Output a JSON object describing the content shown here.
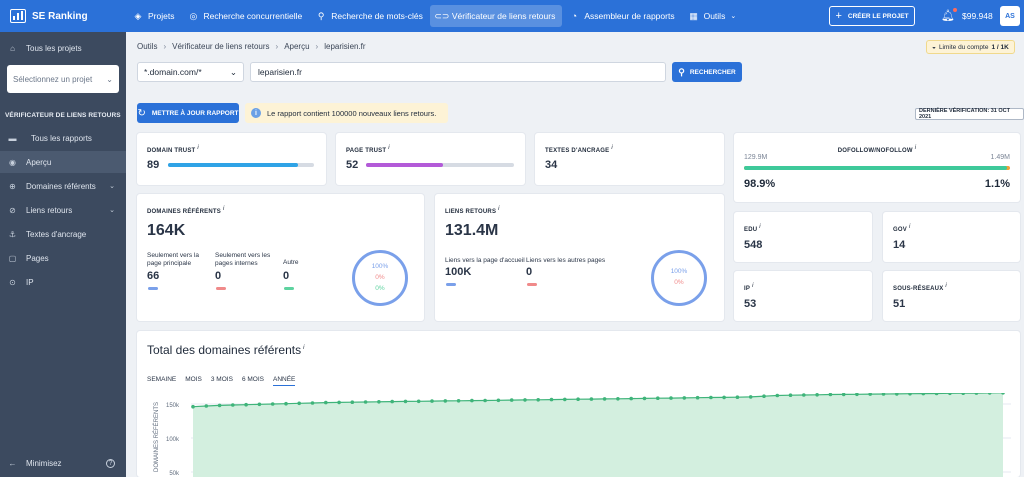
{
  "topbar": {
    "brand": "SE Ranking",
    "nav": [
      "Projets",
      "Recherche concurrentielle",
      "Recherche de mots-clés",
      "Vérificateur de liens retours",
      "Assembleur de rapports",
      "Outils"
    ],
    "create_project": "CRÉER LE PROJET",
    "balance": "$99.948",
    "avatar": "AS"
  },
  "sidebar": {
    "all_projects": "Tous les projets",
    "project_select_placeholder": "Sélectionnez un projet",
    "section_title": "VÉRIFICATEUR DE LIENS RETOURS",
    "items": [
      "Tous les rapports",
      "Aperçu",
      "Domaines référents",
      "Liens retours",
      "Textes d'ancrage",
      "Pages",
      "IP"
    ],
    "minimize": "Minimisez"
  },
  "breadcrumb": [
    "Outils",
    "Vérificateur de liens retours",
    "Aperçu",
    "leparisien.fr"
  ],
  "account_limit": "Limite du compte",
  "account_limit_value": "1 / 1K",
  "search": {
    "scope": "*.domain.com/*",
    "url": "leparisien.fr",
    "button": "RECHERCHER"
  },
  "update_button": "METTRE À JOUR RAPPORT",
  "notice": "Le rapport contient 100000 nouveaux liens retours.",
  "last_check": "DERNIÈRE VÉRIFICATION: 31 OCT 2021",
  "metrics": {
    "domain_trust": {
      "label": "DOMAIN TRUST",
      "value": "89",
      "fill": 0.89
    },
    "page_trust": {
      "label": "PAGE TRUST",
      "value": "52",
      "fill": 0.52
    },
    "anchor_texts": {
      "label": "TEXTES D'ANCRAGE",
      "value": "34"
    },
    "dofollow": {
      "label": "DOFOLLOW/NOFOLLOW",
      "left_raw": "129.9M",
      "right_raw": "1.49M",
      "left_pct": "98.9%",
      "right_pct": "1.1%",
      "fill": 0.989
    },
    "ref_domains": {
      "label": "DOMAINES RÉFÉRENTS",
      "value": "164K",
      "sub": [
        {
          "label": "Seulement vers la page principale",
          "value": "66"
        },
        {
          "label": "Seulement vers les pages internes",
          "value": "0"
        },
        {
          "label": "Autre",
          "value": "0"
        }
      ],
      "donut": [
        "100%",
        "0%",
        "0%"
      ]
    },
    "backlinks": {
      "label": "LIENS RETOURS",
      "value": "131.4M",
      "sub": [
        {
          "label": "Liens vers la page d'accueil",
          "value": "100K"
        },
        {
          "label": "Liens vers les autres pages",
          "value": "0"
        }
      ],
      "donut": [
        "100%",
        "0%"
      ]
    },
    "edu": {
      "label": "EDU",
      "value": "548"
    },
    "gov": {
      "label": "GOV",
      "value": "14"
    },
    "ip": {
      "label": "IP",
      "value": "53"
    },
    "subnets": {
      "label": "SOUS-RÉSEAUX",
      "value": "51"
    }
  },
  "chart": {
    "title": "Total des domaines référents",
    "tabs": [
      "SEMAINE",
      "MOIS",
      "3 MOIS",
      "6 MOIS",
      "ANNÉE"
    ],
    "active_tab": "ANNÉE",
    "ylabel": "DOMAINES RÉFÉRENTS",
    "yticks": [
      "150k",
      "100k",
      "50k"
    ]
  },
  "chart_data": {
    "type": "area",
    "ylabel": "DOMAINES RÉFÉRENTS",
    "ylim": [
      0,
      170000
    ],
    "color": "#3fb47a",
    "values": [
      146000,
      147000,
      148000,
      148500,
      149000,
      149500,
      150000,
      150500,
      151000,
      151500,
      152000,
      152300,
      152600,
      152900,
      153200,
      153500,
      153800,
      154000,
      154200,
      154500,
      154700,
      155000,
      155200,
      155500,
      155700,
      156000,
      156200,
      156500,
      156700,
      157000,
      157200,
      157500,
      157700,
      158000,
      158200,
      158500,
      158700,
      159000,
      159200,
      159500,
      159700,
      160000,
      160500,
      161500,
      162500,
      163000,
      163300,
      163600,
      163900,
      164100,
      164300,
      164500,
      164700,
      164900,
      165100,
      165300,
      165500,
      165700,
      165900,
      166100,
      166300,
      166500
    ]
  },
  "colors": {
    "accent": "#2b71d8",
    "domain_trust_bar": "#2fa3e6",
    "page_trust_bar": "#b35ad8",
    "dofollow_bar": "#3ec99a",
    "nofollow_bar": "#f0a13a",
    "dash_blue": "#7aa0ea",
    "dash_red": "#f08a8a",
    "dash_green": "#5ed3a0"
  }
}
